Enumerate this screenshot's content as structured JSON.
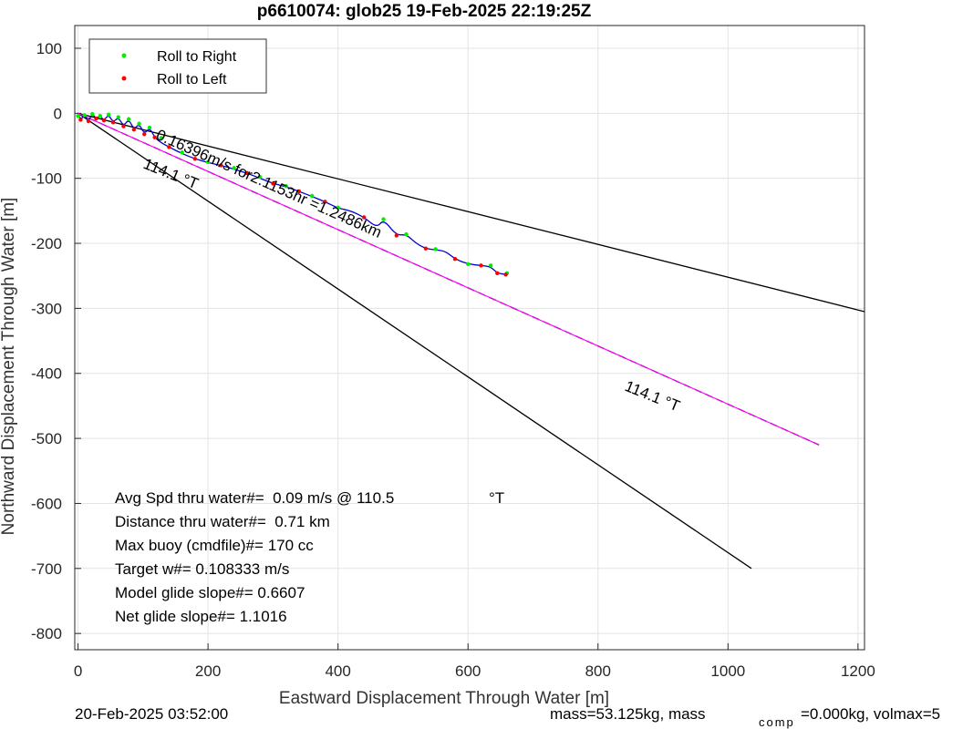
{
  "chart_data": {
    "type": "scatter",
    "title": "p6610074: glob25 19-Feb-2025 22:19:25Z",
    "xlabel": "Eastward Displacement Through Water [m]",
    "ylabel": "Northward Displacement Through Water [m]",
    "xlim": [
      -5,
      1210
    ],
    "ylim": [
      -825,
      135
    ],
    "xticks": [
      0,
      200,
      400,
      600,
      800,
      1000,
      1200
    ],
    "yticks": [
      100,
      0,
      -100,
      -200,
      -300,
      -400,
      -500,
      -600,
      -700,
      -800
    ],
    "grid": true,
    "legend_position": "top-left",
    "legend": [
      {
        "label": "Roll to Right",
        "color": "#00ee00"
      },
      {
        "label": "Roll to Left",
        "color": "#ff0000"
      }
    ],
    "track": {
      "color": "#0000cc",
      "points": [
        [
          0,
          -2
        ],
        [
          4,
          -10
        ],
        [
          10,
          -3
        ],
        [
          16,
          -12
        ],
        [
          22,
          -1
        ],
        [
          28,
          -8
        ],
        [
          34,
          -4
        ],
        [
          40,
          -11
        ],
        [
          47,
          -2
        ],
        [
          54,
          -14
        ],
        [
          62,
          -6
        ],
        [
          70,
          -20
        ],
        [
          78,
          -9
        ],
        [
          86,
          -25
        ],
        [
          94,
          -16
        ],
        [
          102,
          -32
        ],
        [
          110,
          -22
        ],
        [
          118,
          -37
        ],
        [
          126,
          -44
        ],
        [
          140,
          -52
        ],
        [
          160,
          -62
        ],
        [
          180,
          -70
        ],
        [
          200,
          -76
        ],
        [
          220,
          -80
        ],
        [
          240,
          -86
        ],
        [
          260,
          -92
        ],
        [
          280,
          -100
        ],
        [
          300,
          -108
        ],
        [
          320,
          -113
        ],
        [
          340,
          -120
        ],
        [
          360,
          -128
        ],
        [
          380,
          -136
        ],
        [
          400,
          -146
        ],
        [
          420,
          -150
        ],
        [
          440,
          -160
        ],
        [
          460,
          -176
        ],
        [
          470,
          -163
        ],
        [
          490,
          -188
        ],
        [
          505,
          -186
        ],
        [
          520,
          -200
        ],
        [
          535,
          -208
        ],
        [
          550,
          -210
        ],
        [
          565,
          -212
        ],
        [
          580,
          -224
        ],
        [
          600,
          -232
        ],
        [
          620,
          -234
        ],
        [
          635,
          -236
        ],
        [
          645,
          -246
        ],
        [
          660,
          -248
        ]
      ]
    },
    "roll_right_points": [
      [
        0,
        -4
      ],
      [
        10,
        -3
      ],
      [
        22,
        -1
      ],
      [
        34,
        -4
      ],
      [
        47,
        -2
      ],
      [
        62,
        -6
      ],
      [
        78,
        -9
      ],
      [
        94,
        -16
      ],
      [
        110,
        -22
      ],
      [
        128,
        -38
      ],
      [
        160,
        -60
      ],
      [
        200,
        -75
      ],
      [
        240,
        -84
      ],
      [
        280,
        -98
      ],
      [
        320,
        -112
      ],
      [
        360,
        -127
      ],
      [
        400,
        -145
      ],
      [
        470,
        -163
      ],
      [
        505,
        -186
      ],
      [
        550,
        -209
      ],
      [
        600,
        -232
      ],
      [
        635,
        -234
      ],
      [
        660,
        -246
      ]
    ],
    "roll_left_points": [
      [
        4,
        -10
      ],
      [
        16,
        -12
      ],
      [
        28,
        -8
      ],
      [
        40,
        -11
      ],
      [
        54,
        -14
      ],
      [
        70,
        -20
      ],
      [
        86,
        -25
      ],
      [
        102,
        -32
      ],
      [
        118,
        -37
      ],
      [
        140,
        -52
      ],
      [
        180,
        -70
      ],
      [
        220,
        -80
      ],
      [
        260,
        -92
      ],
      [
        300,
        -108
      ],
      [
        340,
        -120
      ],
      [
        380,
        -136
      ],
      [
        440,
        -160
      ],
      [
        490,
        -188
      ],
      [
        535,
        -208
      ],
      [
        580,
        -224
      ],
      [
        620,
        -234
      ],
      [
        645,
        -246
      ],
      [
        658,
        -248
      ]
    ],
    "heading_lines": [
      {
        "from": [
          0,
          0
        ],
        "to": [
          1210,
          -305
        ],
        "color": "#000000",
        "style": "solid"
      },
      {
        "from": [
          0,
          0
        ],
        "to": [
          1036,
          -700
        ],
        "color": "#000000",
        "style": "solid"
      },
      {
        "from": [
          0,
          0
        ],
        "to": [
          1140,
          -510
        ],
        "color": "#000000",
        "style": "dashed"
      },
      {
        "from": [
          0,
          0
        ],
        "to": [
          1140,
          -510
        ],
        "color": "#ff00ff",
        "style": "solid"
      }
    ],
    "annotations": {
      "heading_label_1": "114.1 °T",
      "heading_label_2": "114.1 °T",
      "speed_label": "0.16396m/s for2.1153hr =1.2486km",
      "stats": [
        "Avg Spd thru water#=  0.09 m/s @ 110.5",
        "Distance thru water#=  0.71 km",
        "Max buoy (cmdfile)#= 170 cc",
        "Target w#= 0.108333 m/s",
        "Model glide slope#= 0.6607",
        "Net glide slope#= 1.1016"
      ],
      "stats_unit": "°T"
    }
  },
  "footer": {
    "left": "20-Feb-2025 03:52:00",
    "right_main": "mass=53.125kg, mass",
    "right_sub": "comp",
    "right_tail": "=0.000kg, volmax=5"
  }
}
